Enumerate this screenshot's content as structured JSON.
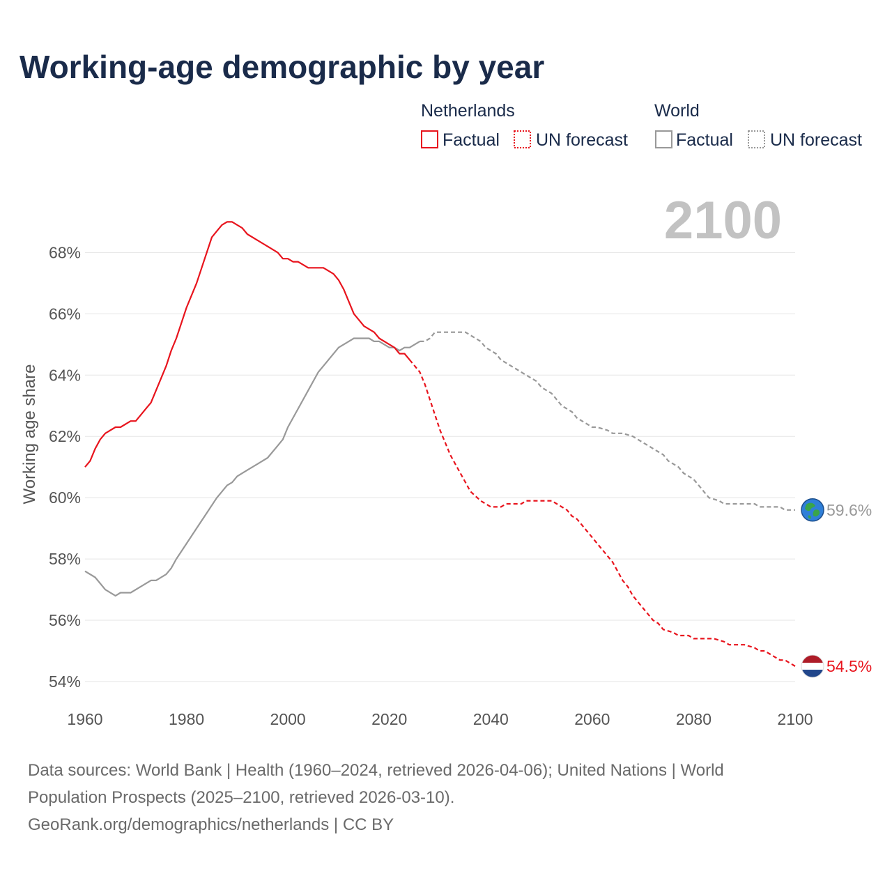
{
  "colors": {
    "netherlands": "#e8141d",
    "world": "#999999",
    "grid": "#e5e5e5",
    "title": "#1a2b4a",
    "watermark": "#c2c2c2"
  },
  "legend": {
    "groups": [
      {
        "name": "Netherlands",
        "factual": "Factual",
        "forecast": "UN forecast"
      },
      {
        "name": "World",
        "factual": "Factual",
        "forecast": "UN forecast"
      }
    ]
  },
  "end_labels": {
    "world": "59.6%",
    "netherlands": "54.5%"
  },
  "icons": {
    "world": "globe-icon",
    "netherlands": "netherlands-flag-icon"
  },
  "sources": {
    "line1": "Data sources: World Bank | Health (1960–2024, retrieved 2026-04-06); United Nations | World",
    "line2": "Population Prospects (2025–2100, retrieved 2026-03-10).",
    "line3": "GeoRank.org/demographics/netherlands | CC BY"
  },
  "chart_data": {
    "type": "line",
    "title": "Working-age demographic by year",
    "year_display": "2100",
    "xlabel": "",
    "ylabel": "Working age share",
    "xlim": [
      1960,
      2100
    ],
    "ylim": [
      53.5,
      69.6
    ],
    "x_ticks": [
      1960,
      1980,
      2000,
      2020,
      2040,
      2060,
      2080,
      2100
    ],
    "y_ticks": [
      {
        "value": 54,
        "label": "54%"
      },
      {
        "value": 56,
        "label": "56%"
      },
      {
        "value": 58,
        "label": "58%"
      },
      {
        "value": 60,
        "label": "60%"
      },
      {
        "value": 62,
        "label": "62%"
      },
      {
        "value": 64,
        "label": "64%"
      },
      {
        "value": 66,
        "label": "66%"
      },
      {
        "value": 68,
        "label": "68%"
      }
    ],
    "series": [
      {
        "name": "Netherlands",
        "color_key": "netherlands",
        "factual": [
          [
            1960,
            61.0
          ],
          [
            1961,
            61.2
          ],
          [
            1962,
            61.6
          ],
          [
            1963,
            61.9
          ],
          [
            1964,
            62.1
          ],
          [
            1966,
            62.3
          ],
          [
            1967,
            62.3
          ],
          [
            1969,
            62.5
          ],
          [
            1970,
            62.5
          ],
          [
            1972,
            62.9
          ],
          [
            1973,
            63.1
          ],
          [
            1975,
            63.9
          ],
          [
            1976,
            64.3
          ],
          [
            1977,
            64.8
          ],
          [
            1978,
            65.2
          ],
          [
            1980,
            66.2
          ],
          [
            1982,
            67.0
          ],
          [
            1983,
            67.5
          ],
          [
            1985,
            68.5
          ],
          [
            1986,
            68.7
          ],
          [
            1987,
            68.9
          ],
          [
            1988,
            69.0
          ],
          [
            1989,
            69.0
          ],
          [
            1991,
            68.8
          ],
          [
            1992,
            68.6
          ],
          [
            1994,
            68.4
          ],
          [
            1996,
            68.2
          ],
          [
            1998,
            68.0
          ],
          [
            1999,
            67.8
          ],
          [
            2000,
            67.8
          ],
          [
            2001,
            67.7
          ],
          [
            2002,
            67.7
          ],
          [
            2004,
            67.5
          ],
          [
            2007,
            67.5
          ],
          [
            2008,
            67.4
          ],
          [
            2009,
            67.3
          ],
          [
            2010,
            67.1
          ],
          [
            2011,
            66.8
          ],
          [
            2012,
            66.4
          ],
          [
            2013,
            66.0
          ],
          [
            2015,
            65.6
          ],
          [
            2017,
            65.4
          ],
          [
            2018,
            65.2
          ],
          [
            2020,
            65.0
          ],
          [
            2021,
            64.9
          ],
          [
            2022,
            64.7
          ],
          [
            2023,
            64.7
          ],
          [
            2024,
            64.5
          ]
        ],
        "forecast": [
          [
            2024,
            64.5
          ],
          [
            2025,
            64.3
          ],
          [
            2026,
            64.1
          ],
          [
            2027,
            63.7
          ],
          [
            2028,
            63.2
          ],
          [
            2029,
            62.7
          ],
          [
            2030,
            62.2
          ],
          [
            2031,
            61.8
          ],
          [
            2032,
            61.4
          ],
          [
            2033,
            61.1
          ],
          [
            2034,
            60.8
          ],
          [
            2035,
            60.5
          ],
          [
            2036,
            60.2
          ],
          [
            2038,
            59.9
          ],
          [
            2039,
            59.8
          ],
          [
            2040,
            59.7
          ],
          [
            2042,
            59.7
          ],
          [
            2043,
            59.8
          ],
          [
            2046,
            59.8
          ],
          [
            2047,
            59.9
          ],
          [
            2052,
            59.9
          ],
          [
            2053,
            59.8
          ],
          [
            2054,
            59.7
          ],
          [
            2055,
            59.6
          ],
          [
            2056,
            59.4
          ],
          [
            2057,
            59.3
          ],
          [
            2058,
            59.1
          ],
          [
            2059,
            58.9
          ],
          [
            2060,
            58.7
          ],
          [
            2061,
            58.5
          ],
          [
            2062,
            58.3
          ],
          [
            2063,
            58.1
          ],
          [
            2064,
            57.9
          ],
          [
            2065,
            57.6
          ],
          [
            2066,
            57.3
          ],
          [
            2067,
            57.1
          ],
          [
            2068,
            56.8
          ],
          [
            2069,
            56.6
          ],
          [
            2070,
            56.4
          ],
          [
            2071,
            56.2
          ],
          [
            2072,
            56.0
          ],
          [
            2073,
            55.9
          ],
          [
            2074,
            55.7
          ],
          [
            2076,
            55.6
          ],
          [
            2077,
            55.5
          ],
          [
            2079,
            55.5
          ],
          [
            2080,
            55.4
          ],
          [
            2084,
            55.4
          ],
          [
            2086,
            55.3
          ],
          [
            2087,
            55.2
          ],
          [
            2090,
            55.2
          ],
          [
            2092,
            55.1
          ],
          [
            2093,
            55.0
          ],
          [
            2094,
            55.0
          ],
          [
            2096,
            54.8
          ],
          [
            2097,
            54.7
          ],
          [
            2098,
            54.7
          ],
          [
            2099,
            54.6
          ],
          [
            2100,
            54.5
          ]
        ]
      },
      {
        "name": "World",
        "color_key": "world",
        "factual": [
          [
            1960,
            57.6
          ],
          [
            1962,
            57.4
          ],
          [
            1964,
            57.0
          ],
          [
            1966,
            56.8
          ],
          [
            1967,
            56.9
          ],
          [
            1969,
            56.9
          ],
          [
            1971,
            57.1
          ],
          [
            1973,
            57.3
          ],
          [
            1974,
            57.3
          ],
          [
            1976,
            57.5
          ],
          [
            1977,
            57.7
          ],
          [
            1978,
            58.0
          ],
          [
            1980,
            58.5
          ],
          [
            1982,
            59.0
          ],
          [
            1984,
            59.5
          ],
          [
            1986,
            60.0
          ],
          [
            1987,
            60.2
          ],
          [
            1988,
            60.4
          ],
          [
            1989,
            60.5
          ],
          [
            1990,
            60.7
          ],
          [
            1992,
            60.9
          ],
          [
            1994,
            61.1
          ],
          [
            1996,
            61.3
          ],
          [
            1998,
            61.7
          ],
          [
            1999,
            61.9
          ],
          [
            2000,
            62.3
          ],
          [
            2002,
            62.9
          ],
          [
            2004,
            63.5
          ],
          [
            2006,
            64.1
          ],
          [
            2008,
            64.5
          ],
          [
            2010,
            64.9
          ],
          [
            2012,
            65.1
          ],
          [
            2013,
            65.2
          ],
          [
            2016,
            65.2
          ],
          [
            2017,
            65.1
          ],
          [
            2018,
            65.1
          ],
          [
            2019,
            65.0
          ],
          [
            2020,
            64.9
          ],
          [
            2021,
            64.9
          ],
          [
            2022,
            64.8
          ],
          [
            2023,
            64.9
          ],
          [
            2024,
            64.9
          ],
          [
            2025,
            65.0
          ],
          [
            2026,
            65.1
          ]
        ],
        "forecast": [
          [
            2026,
            65.1
          ],
          [
            2027,
            65.1
          ],
          [
            2028,
            65.2
          ],
          [
            2029,
            65.4
          ],
          [
            2035,
            65.4
          ],
          [
            2036,
            65.3
          ],
          [
            2037,
            65.2
          ],
          [
            2038,
            65.1
          ],
          [
            2039,
            64.9
          ],
          [
            2040,
            64.8
          ],
          [
            2041,
            64.7
          ],
          [
            2042,
            64.5
          ],
          [
            2043,
            64.4
          ],
          [
            2045,
            64.2
          ],
          [
            2047,
            64.0
          ],
          [
            2049,
            63.8
          ],
          [
            2050,
            63.6
          ],
          [
            2052,
            63.4
          ],
          [
            2053,
            63.2
          ],
          [
            2054,
            63.0
          ],
          [
            2056,
            62.8
          ],
          [
            2057,
            62.6
          ],
          [
            2058,
            62.5
          ],
          [
            2060,
            62.3
          ],
          [
            2061,
            62.3
          ],
          [
            2063,
            62.2
          ],
          [
            2064,
            62.1
          ],
          [
            2066,
            62.1
          ],
          [
            2068,
            62.0
          ],
          [
            2070,
            61.8
          ],
          [
            2072,
            61.6
          ],
          [
            2074,
            61.4
          ],
          [
            2075,
            61.2
          ],
          [
            2077,
            61.0
          ],
          [
            2078,
            60.8
          ],
          [
            2080,
            60.6
          ],
          [
            2081,
            60.4
          ],
          [
            2082,
            60.2
          ],
          [
            2083,
            60.0
          ],
          [
            2085,
            59.9
          ],
          [
            2086,
            59.8
          ],
          [
            2092,
            59.8
          ],
          [
            2093,
            59.7
          ],
          [
            2096,
            59.7
          ],
          [
            2097,
            59.7
          ],
          [
            2098,
            59.6
          ],
          [
            2100,
            59.6
          ]
        ]
      }
    ]
  }
}
